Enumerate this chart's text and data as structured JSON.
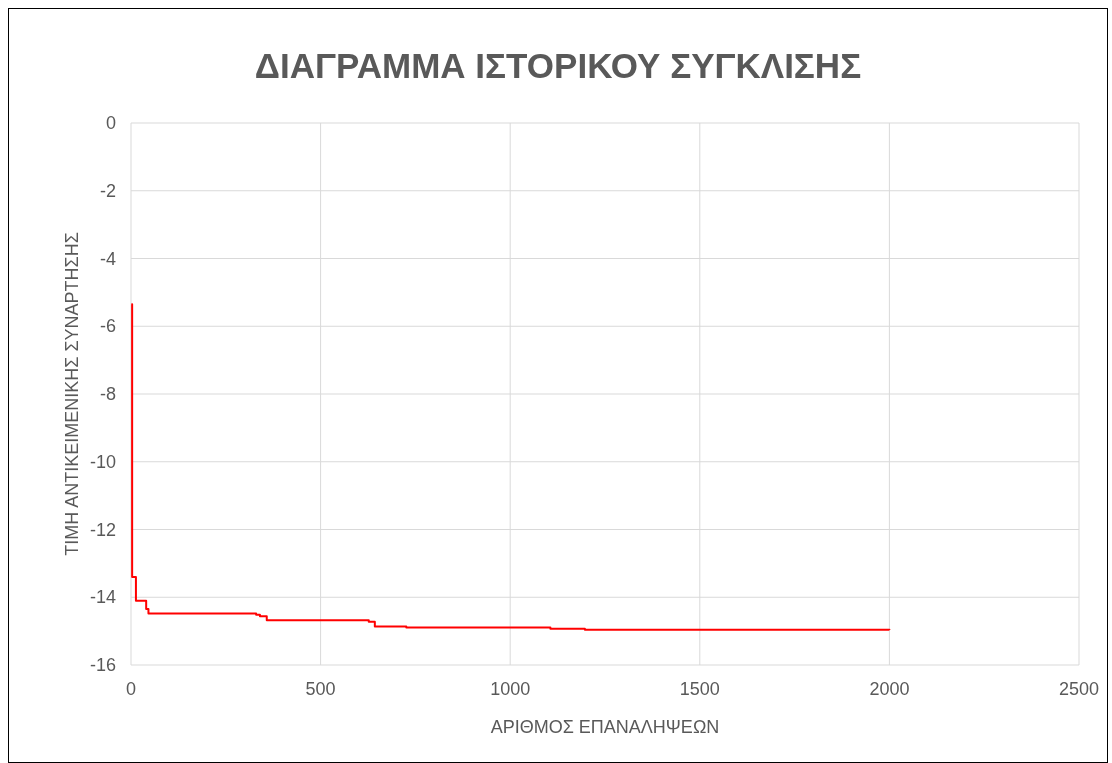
{
  "chart_data": {
    "type": "step",
    "title": "ΔΙΑΓΡΑΜΜΑ ΙΣΤΟΡΙΚΟΥ ΣΥΓΚΛΙΣΗΣ",
    "xlabel": "ΑΡΙΘΜΟΣ ΕΠΑΝΑΛΗΨΕΩΝ",
    "ylabel": "ΤΙΜΗ ΑΝΤΙΚΕΙΜΕΝΙΚΗΣ ΣΥΝΑΡΤΗΣΗΣ",
    "series": [
      {
        "color": "#ff0000",
        "x": [
          1,
          3,
          13,
          40,
          46,
          330,
          340,
          358,
          627,
          643,
          726,
          1106,
          1197,
          2000
        ],
        "values": [
          -5.35,
          -13.4,
          -14.1,
          -14.35,
          -14.48,
          -14.52,
          -14.56,
          -14.68,
          -14.72,
          -14.86,
          -14.89,
          -14.93,
          -14.96,
          -14.97
        ]
      }
    ],
    "xlim": [
      0,
      2500
    ],
    "xticks": [
      0,
      500,
      1000,
      1500,
      2000,
      2500
    ],
    "ylim": [
      -16,
      0
    ],
    "yticks": [
      -16,
      -14,
      -12,
      -10,
      -8,
      -6,
      -4,
      -2,
      0
    ],
    "grid": true
  }
}
